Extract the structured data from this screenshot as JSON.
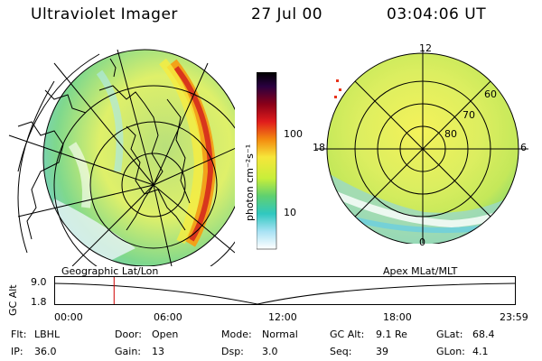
{
  "header": {
    "instrument": "Ultraviolet Imager",
    "date": "27 Jul 00",
    "time": "03:04:06 UT"
  },
  "colorbar": {
    "unit_label": "photon cm⁻²s⁻¹",
    "ticks": [
      "100",
      "10"
    ]
  },
  "left_panel": {
    "label": "Geographic Lat/Lon"
  },
  "right_panel": {
    "label": "Apex MLat/MLT",
    "mlt_labels": [
      "12",
      "18",
      "6",
      "0"
    ],
    "lat_labels": [
      "60",
      "70",
      "80"
    ]
  },
  "altitude_plot": {
    "ylabel": "GC Alt",
    "yticks": [
      "9.0",
      "1.8"
    ],
    "xticks": [
      "00:00",
      "06:00",
      "12:00",
      "18:00",
      "23:59"
    ],
    "current_time_fraction": 0.128
  },
  "footer": {
    "row1": [
      {
        "key": "Flt:",
        "value": "LBHL"
      },
      {
        "key": "Door:",
        "value": "Open"
      },
      {
        "key": "Mode:",
        "value": "Normal"
      },
      {
        "key": "GC Alt:",
        "value": "9.1 Re"
      },
      {
        "key": "GLat:",
        "value": "68.4"
      }
    ],
    "row2": [
      {
        "key": "IP:",
        "value": "36.0"
      },
      {
        "key": "Gain:",
        "value": "13"
      },
      {
        "key": "Dsp:",
        "value": "3.0"
      },
      {
        "key": "Seq:",
        "value": "39"
      },
      {
        "key": "GLon:",
        "value": "4.1"
      }
    ]
  }
}
